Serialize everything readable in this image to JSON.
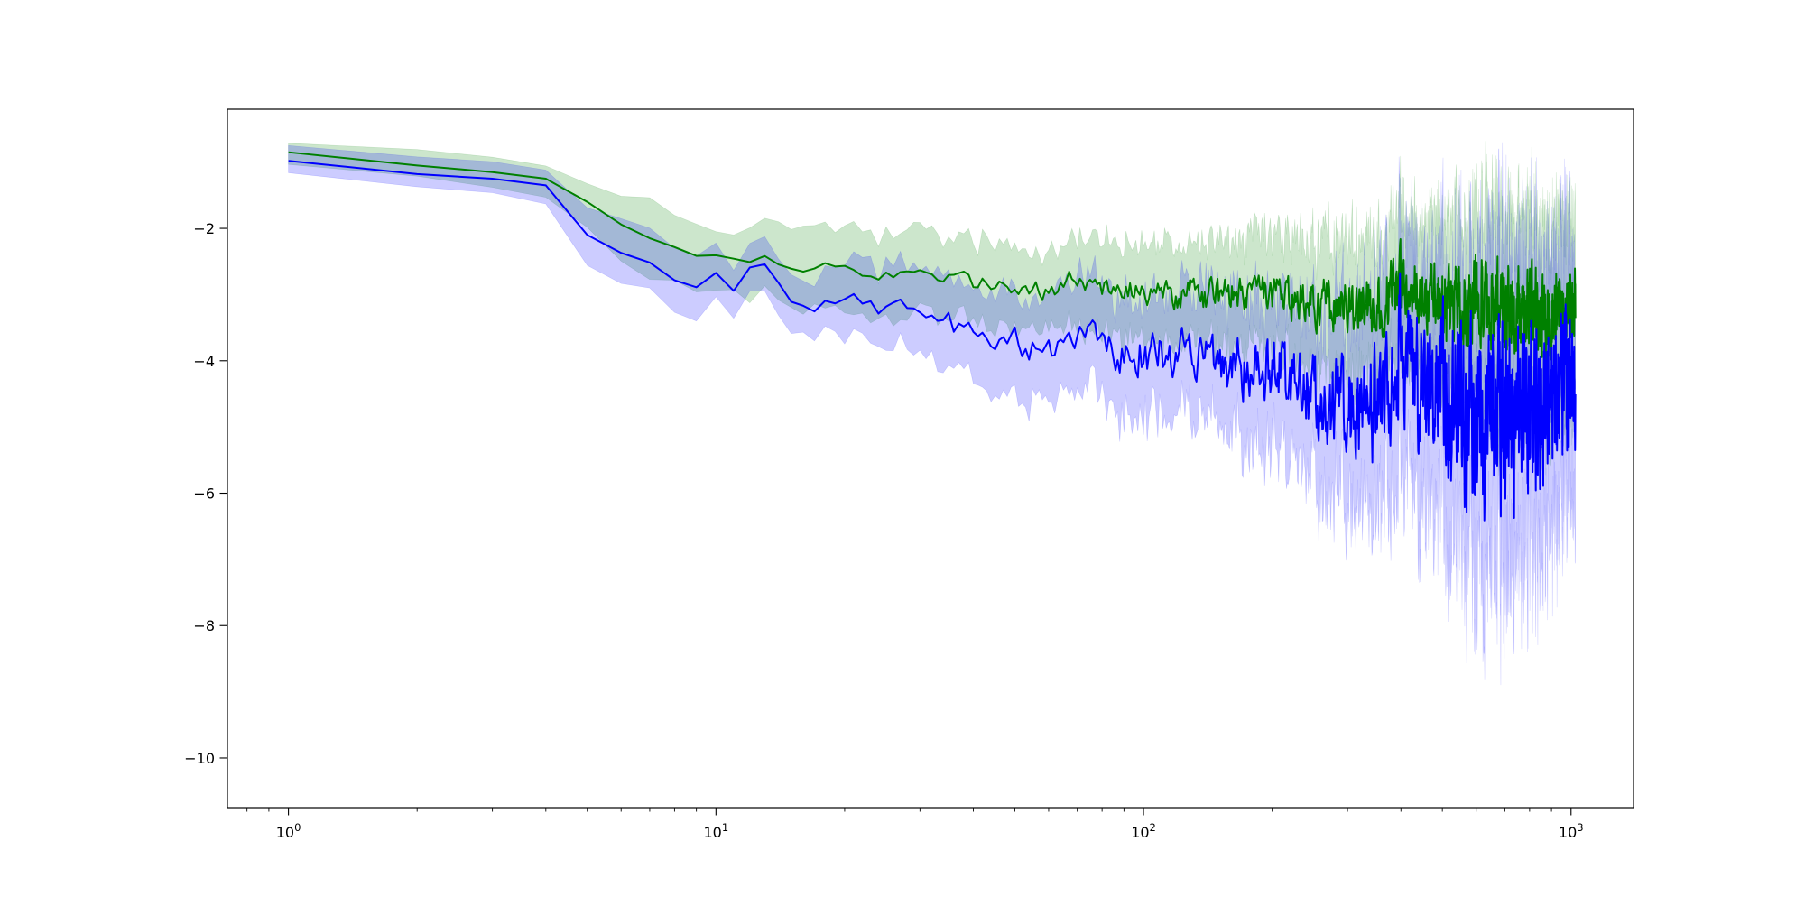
{
  "chart_data": {
    "type": "line",
    "title": "",
    "xlabel": "",
    "ylabel": "",
    "x_scale": "log",
    "xlim": [
      0.72,
      1400
    ],
    "ylim": [
      -10.75,
      -0.2
    ],
    "grid": false,
    "legend": "none",
    "x_ticks": [
      {
        "value": 1,
        "base": "10",
        "exp": "0"
      },
      {
        "value": 10,
        "base": "10",
        "exp": "1"
      },
      {
        "value": 100,
        "base": "10",
        "exp": "2"
      },
      {
        "value": 1000,
        "base": "10",
        "exp": "3"
      }
    ],
    "y_ticks": [
      {
        "value": -2,
        "label": "−2"
      },
      {
        "value": -4,
        "label": "−4"
      },
      {
        "value": -6,
        "label": "−6"
      },
      {
        "value": -8,
        "label": "−8"
      },
      {
        "value": -10,
        "label": "−10"
      }
    ],
    "n_points": 1024,
    "series": [
      {
        "color": "#008000",
        "band_color": "#008000",
        "band_opacity": 0.2,
        "x": [
          1,
          2,
          3,
          4,
          5,
          6,
          7,
          8,
          9,
          10,
          12,
          13,
          15,
          18,
          20,
          25,
          30,
          40,
          50,
          60,
          70,
          80,
          100,
          130,
          150,
          200,
          250,
          300,
          350,
          400,
          450,
          500,
          550,
          600,
          650,
          700,
          750,
          800,
          850,
          900,
          950,
          1024
        ],
        "mean": [
          -0.85,
          -1.05,
          -1.15,
          -1.25,
          -1.6,
          -1.95,
          -2.15,
          -2.3,
          -2.4,
          -2.35,
          -2.45,
          -2.3,
          -2.6,
          -2.55,
          -2.6,
          -2.7,
          -2.72,
          -2.82,
          -2.86,
          -2.93,
          -2.78,
          -2.9,
          -2.95,
          -3.0,
          -3.02,
          -3.05,
          -3.1,
          -3.2,
          -3.15,
          -2.85,
          -3.05,
          -3.1,
          -3.2,
          -3.05,
          -3.25,
          -3.15,
          -3.3,
          -3.25,
          -3.3,
          -3.35,
          -3.2,
          -3.15
        ],
        "spread": [
          0.18,
          0.2,
          0.22,
          0.25,
          0.35,
          0.45,
          0.5,
          0.5,
          0.5,
          0.45,
          0.5,
          0.5,
          0.55,
          0.6,
          0.6,
          0.62,
          0.62,
          0.6,
          0.6,
          0.62,
          0.65,
          0.7,
          0.72,
          0.75,
          0.8,
          0.85,
          0.95,
          1.05,
          1.1,
          1.1,
          1.15,
          1.2,
          1.3,
          1.4,
          1.5,
          1.5,
          1.5,
          1.45,
          1.45,
          1.45,
          1.4,
          1.35
        ],
        "noise": [
          0,
          0,
          0,
          0,
          0,
          0.02,
          0.04,
          0.05,
          0.06,
          0.07,
          0.08,
          0.09,
          0.1,
          0.1,
          0.1,
          0.1,
          0.11,
          0.12,
          0.13,
          0.14,
          0.15,
          0.16,
          0.18,
          0.2,
          0.22,
          0.26,
          0.3,
          0.34,
          0.38,
          0.42,
          0.45,
          0.48,
          0.5,
          0.52,
          0.54,
          0.55,
          0.55,
          0.55,
          0.52,
          0.5,
          0.48,
          0.45
        ]
      },
      {
        "color": "#0000ff",
        "band_color": "#0000ff",
        "band_opacity": 0.2,
        "x": [
          1,
          2,
          3,
          4,
          5,
          6,
          7,
          8,
          9,
          10,
          11,
          12,
          13,
          15,
          18,
          20,
          25,
          30,
          40,
          50,
          60,
          70,
          80,
          100,
          130,
          150,
          200,
          250,
          300,
          350,
          400,
          450,
          500,
          550,
          600,
          650,
          700,
          750,
          800,
          850,
          900,
          950,
          1024
        ],
        "mean": [
          -0.98,
          -1.18,
          -1.25,
          -1.35,
          -2.1,
          -2.38,
          -2.5,
          -2.8,
          -2.85,
          -2.6,
          -2.9,
          -2.65,
          -2.6,
          -3.1,
          -3.1,
          -3.15,
          -3.2,
          -3.35,
          -3.55,
          -3.7,
          -3.85,
          -3.75,
          -3.8,
          -3.9,
          -3.95,
          -4.0,
          -4.1,
          -4.4,
          -4.7,
          -4.6,
          -3.8,
          -4.5,
          -4.4,
          -4.7,
          -4.8,
          -4.9,
          -5.0,
          -4.7,
          -4.8,
          -4.7,
          -4.8,
          -4.4,
          -4.3
        ],
        "spread": [
          0.22,
          0.25,
          0.28,
          0.3,
          0.4,
          0.45,
          0.45,
          0.45,
          0.45,
          0.4,
          0.4,
          0.35,
          0.4,
          0.45,
          0.5,
          0.55,
          0.6,
          0.65,
          0.7,
          0.75,
          0.8,
          0.85,
          0.85,
          0.9,
          0.95,
          1.0,
          1.1,
          1.25,
          1.45,
          1.6,
          1.7,
          1.75,
          1.8,
          1.95,
          2.1,
          2.3,
          2.3,
          2.2,
          2.1,
          2.1,
          2.0,
          1.9,
          1.8
        ],
        "noise": [
          0,
          0,
          0,
          0,
          0,
          0.02,
          0.04,
          0.05,
          0.06,
          0.08,
          0.1,
          0.12,
          0.12,
          0.14,
          0.15,
          0.15,
          0.16,
          0.17,
          0.18,
          0.2,
          0.22,
          0.24,
          0.26,
          0.3,
          0.34,
          0.38,
          0.45,
          0.55,
          0.65,
          0.75,
          0.85,
          0.9,
          0.95,
          1.0,
          1.05,
          1.1,
          1.1,
          1.05,
          1.0,
          0.95,
          0.9,
          0.85,
          0.8
        ]
      }
    ]
  }
}
